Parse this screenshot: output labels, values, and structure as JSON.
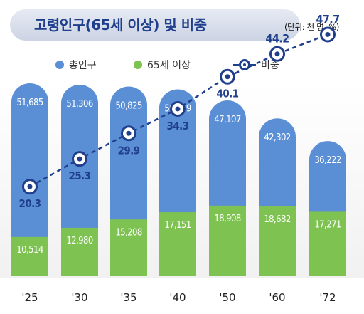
{
  "header": {
    "title": "고령인구(65세 이상) 및 비중",
    "unit": "(단위: 천 명, %)"
  },
  "legend": {
    "total_label": "총인구",
    "elderly_label": "65세 이상",
    "ratio_label": "비중"
  },
  "colors": {
    "total": "#5b8fd5",
    "elderly": "#7ec351",
    "ratio": "#1f3f8c",
    "title": "#1f3f8c"
  },
  "chart_data": {
    "type": "bar",
    "title": "고령인구(65세 이상) 및 비중",
    "categories": [
      "'25",
      "'30",
      "'35",
      "'40",
      "'50",
      "'60",
      "'72"
    ],
    "series": [
      {
        "name": "총인구",
        "values": [
          51685,
          51306,
          50825,
          50059,
          47107,
          42302,
          36222
        ],
        "labels": [
          "51,685",
          "51,306",
          "50,825",
          "50,059",
          "47,107",
          "42,302",
          "36,222"
        ]
      },
      {
        "name": "65세 이상",
        "values": [
          10514,
          12980,
          15208,
          17151,
          18908,
          18682,
          17271
        ],
        "labels": [
          "10,514",
          "12,980",
          "15,208",
          "17,151",
          "18,908",
          "18,682",
          "17,271"
        ]
      },
      {
        "name": "비중",
        "values": [
          20.3,
          25.3,
          29.9,
          34.3,
          40.1,
          44.2,
          47.7
        ],
        "labels": [
          "20.3",
          "25.3",
          "29.9",
          "34.3",
          "40.1",
          "44.2",
          "47.7"
        ]
      }
    ]
  }
}
